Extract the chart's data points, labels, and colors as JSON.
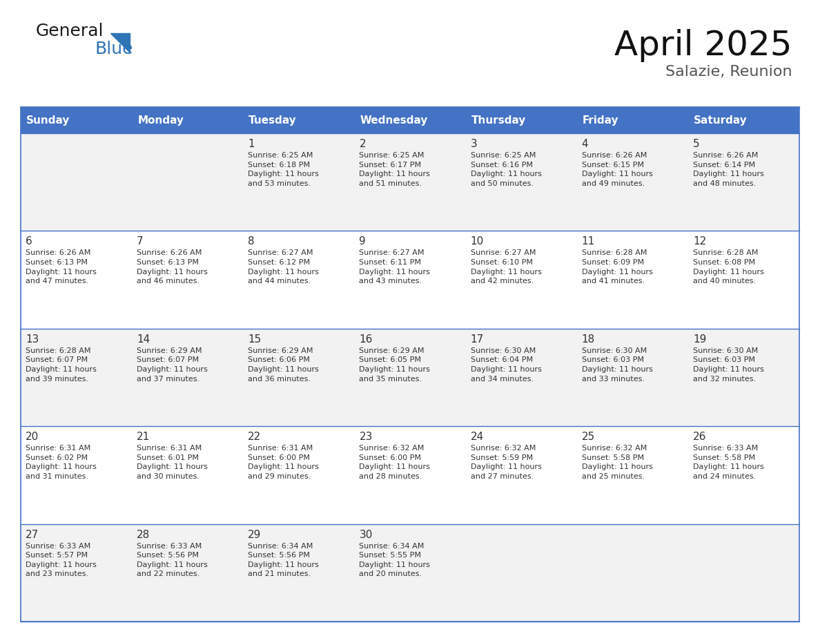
{
  "title": "April 2025",
  "subtitle": "Salazie, Reunion",
  "header_color": "#4472C4",
  "header_text_color": "#FFFFFF",
  "cell_bg_color": "#F2F2F2",
  "cell_bg_white": "#FFFFFF",
  "border_color": "#4472C4",
  "row_divider_color": "#4472C4",
  "text_color": "#333333",
  "days_of_week": [
    "Sunday",
    "Monday",
    "Tuesday",
    "Wednesday",
    "Thursday",
    "Friday",
    "Saturday"
  ],
  "weeks": [
    [
      {
        "day": "",
        "info": ""
      },
      {
        "day": "",
        "info": ""
      },
      {
        "day": "1",
        "info": "Sunrise: 6:25 AM\nSunset: 6:18 PM\nDaylight: 11 hours\nand 53 minutes."
      },
      {
        "day": "2",
        "info": "Sunrise: 6:25 AM\nSunset: 6:17 PM\nDaylight: 11 hours\nand 51 minutes."
      },
      {
        "day": "3",
        "info": "Sunrise: 6:25 AM\nSunset: 6:16 PM\nDaylight: 11 hours\nand 50 minutes."
      },
      {
        "day": "4",
        "info": "Sunrise: 6:26 AM\nSunset: 6:15 PM\nDaylight: 11 hours\nand 49 minutes."
      },
      {
        "day": "5",
        "info": "Sunrise: 6:26 AM\nSunset: 6:14 PM\nDaylight: 11 hours\nand 48 minutes."
      }
    ],
    [
      {
        "day": "6",
        "info": "Sunrise: 6:26 AM\nSunset: 6:13 PM\nDaylight: 11 hours\nand 47 minutes."
      },
      {
        "day": "7",
        "info": "Sunrise: 6:26 AM\nSunset: 6:13 PM\nDaylight: 11 hours\nand 46 minutes."
      },
      {
        "day": "8",
        "info": "Sunrise: 6:27 AM\nSunset: 6:12 PM\nDaylight: 11 hours\nand 44 minutes."
      },
      {
        "day": "9",
        "info": "Sunrise: 6:27 AM\nSunset: 6:11 PM\nDaylight: 11 hours\nand 43 minutes."
      },
      {
        "day": "10",
        "info": "Sunrise: 6:27 AM\nSunset: 6:10 PM\nDaylight: 11 hours\nand 42 minutes."
      },
      {
        "day": "11",
        "info": "Sunrise: 6:28 AM\nSunset: 6:09 PM\nDaylight: 11 hours\nand 41 minutes."
      },
      {
        "day": "12",
        "info": "Sunrise: 6:28 AM\nSunset: 6:08 PM\nDaylight: 11 hours\nand 40 minutes."
      }
    ],
    [
      {
        "day": "13",
        "info": "Sunrise: 6:28 AM\nSunset: 6:07 PM\nDaylight: 11 hours\nand 39 minutes."
      },
      {
        "day": "14",
        "info": "Sunrise: 6:29 AM\nSunset: 6:07 PM\nDaylight: 11 hours\nand 37 minutes."
      },
      {
        "day": "15",
        "info": "Sunrise: 6:29 AM\nSunset: 6:06 PM\nDaylight: 11 hours\nand 36 minutes."
      },
      {
        "day": "16",
        "info": "Sunrise: 6:29 AM\nSunset: 6:05 PM\nDaylight: 11 hours\nand 35 minutes."
      },
      {
        "day": "17",
        "info": "Sunrise: 6:30 AM\nSunset: 6:04 PM\nDaylight: 11 hours\nand 34 minutes."
      },
      {
        "day": "18",
        "info": "Sunrise: 6:30 AM\nSunset: 6:03 PM\nDaylight: 11 hours\nand 33 minutes."
      },
      {
        "day": "19",
        "info": "Sunrise: 6:30 AM\nSunset: 6:03 PM\nDaylight: 11 hours\nand 32 minutes."
      }
    ],
    [
      {
        "day": "20",
        "info": "Sunrise: 6:31 AM\nSunset: 6:02 PM\nDaylight: 11 hours\nand 31 minutes."
      },
      {
        "day": "21",
        "info": "Sunrise: 6:31 AM\nSunset: 6:01 PM\nDaylight: 11 hours\nand 30 minutes."
      },
      {
        "day": "22",
        "info": "Sunrise: 6:31 AM\nSunset: 6:00 PM\nDaylight: 11 hours\nand 29 minutes."
      },
      {
        "day": "23",
        "info": "Sunrise: 6:32 AM\nSunset: 6:00 PM\nDaylight: 11 hours\nand 28 minutes."
      },
      {
        "day": "24",
        "info": "Sunrise: 6:32 AM\nSunset: 5:59 PM\nDaylight: 11 hours\nand 27 minutes."
      },
      {
        "day": "25",
        "info": "Sunrise: 6:32 AM\nSunset: 5:58 PM\nDaylight: 11 hours\nand 25 minutes."
      },
      {
        "day": "26",
        "info": "Sunrise: 6:33 AM\nSunset: 5:58 PM\nDaylight: 11 hours\nand 24 minutes."
      }
    ],
    [
      {
        "day": "27",
        "info": "Sunrise: 6:33 AM\nSunset: 5:57 PM\nDaylight: 11 hours\nand 23 minutes."
      },
      {
        "day": "28",
        "info": "Sunrise: 6:33 AM\nSunset: 5:56 PM\nDaylight: 11 hours\nand 22 minutes."
      },
      {
        "day": "29",
        "info": "Sunrise: 6:34 AM\nSunset: 5:56 PM\nDaylight: 11 hours\nand 21 minutes."
      },
      {
        "day": "30",
        "info": "Sunrise: 6:34 AM\nSunset: 5:55 PM\nDaylight: 11 hours\nand 20 minutes."
      },
      {
        "day": "",
        "info": ""
      },
      {
        "day": "",
        "info": ""
      },
      {
        "day": "",
        "info": ""
      }
    ]
  ],
  "logo_general_color": "#1a1a1a",
  "logo_blue_color": "#2E75B6",
  "logo_triangle_color": "#2E75B6",
  "title_fontsize": 36,
  "subtitle_fontsize": 16,
  "header_fontsize": 11,
  "day_number_fontsize": 11,
  "info_fontsize": 8
}
